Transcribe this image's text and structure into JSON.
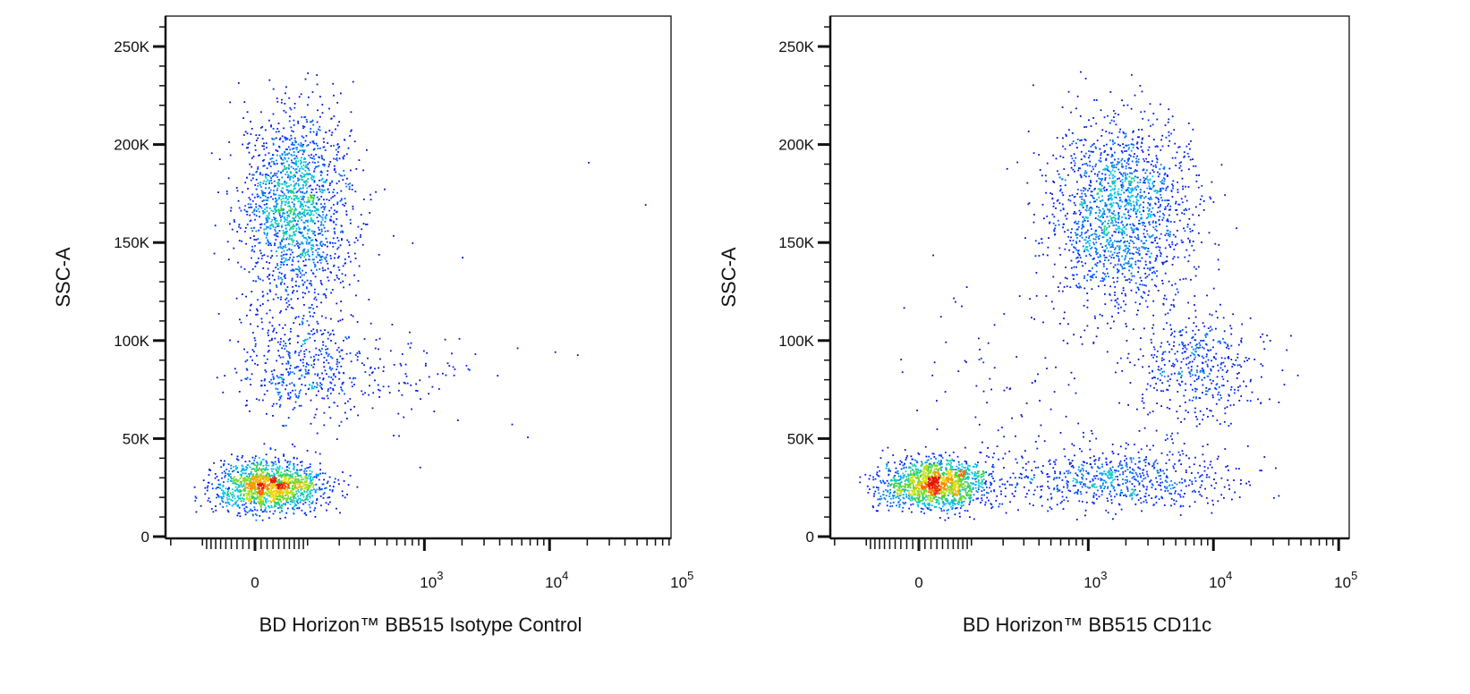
{
  "chart_data": [
    {
      "type": "scatter",
      "subtype": "flow-cytometry density dot plot",
      "xlabel": "BD Horizon™ BB515  Isotype Control",
      "ylabel": "SSC-A",
      "x_scale": "biexponential",
      "x_ticks": [
        {
          "value": 0,
          "label": "0"
        },
        {
          "value": 1000,
          "base": "10",
          "exp": "3"
        },
        {
          "value": 10000,
          "base": "10",
          "exp": "4"
        },
        {
          "value": 100000,
          "base": "10",
          "exp": "5"
        }
      ],
      "y_ticks": [
        {
          "value": 0,
          "label": "0"
        },
        {
          "value": 50000,
          "label": "50K"
        },
        {
          "value": 100000,
          "label": "100K"
        },
        {
          "value": 150000,
          "label": "150K"
        },
        {
          "value": 200000,
          "label": "200K"
        },
        {
          "value": 250000,
          "label": "250K"
        }
      ],
      "ylim": [
        0,
        262144
      ],
      "color_scale": "density (blue-cyan-green-yellow-red)",
      "populations": [
        {
          "x_center": 22,
          "x_sd_decades": 0.22,
          "y_center": 26000,
          "y_sd": 6500,
          "n": 1500
        },
        {
          "x_center": 72,
          "x_sd_decades": 0.22,
          "y_center": 168000,
          "y_sd": 24000,
          "n": 1700
        },
        {
          "x_center": 80,
          "x_sd_decades": 0.25,
          "y_center": 86000,
          "y_sd": 14000,
          "n": 450
        },
        {
          "x_center": 600,
          "x_sd_decades": 0.3,
          "y_center": 85000,
          "y_sd": 12000,
          "n": 90
        },
        {
          "x_center": 3000,
          "x_sd_decades": 1.0,
          "y_center": 80000,
          "y_sd": 70000,
          "n": 25
        }
      ]
    },
    {
      "type": "scatter",
      "subtype": "flow-cytometry density dot plot",
      "xlabel": "BD Horizon™ BB515  CD11c",
      "ylabel": "SSC-A",
      "x_scale": "biexponential",
      "x_ticks": [
        {
          "value": 0,
          "label": "0"
        },
        {
          "value": 1000,
          "base": "10",
          "exp": "3"
        },
        {
          "value": 10000,
          "base": "10",
          "exp": "4"
        },
        {
          "value": 100000,
          "base": "10",
          "exp": "5"
        }
      ],
      "y_ticks": [
        {
          "value": 0,
          "label": "0"
        },
        {
          "value": 50000,
          "label": "50K"
        },
        {
          "value": 100000,
          "label": "100K"
        },
        {
          "value": 150000,
          "label": "150K"
        },
        {
          "value": 200000,
          "label": "200K"
        },
        {
          "value": 250000,
          "label": "250K"
        }
      ],
      "ylim": [
        0,
        262144
      ],
      "color_scale": "density (blue-cyan-green-yellow-red)",
      "populations": [
        {
          "x_center": 25,
          "x_sd_decades": 0.22,
          "y_center": 27000,
          "y_sd": 6500,
          "n": 1500
        },
        {
          "x_center": 1800,
          "x_sd_decades": 0.45,
          "y_center": 30000,
          "y_sd": 8000,
          "n": 700
        },
        {
          "x_center": 1800,
          "x_sd_decades": 0.28,
          "y_center": 166000,
          "y_sd": 24000,
          "n": 1700
        },
        {
          "x_center": 7000,
          "x_sd_decades": 0.25,
          "y_center": 88000,
          "y_sd": 14000,
          "n": 450
        },
        {
          "x_center": 300,
          "x_sd_decades": 0.5,
          "y_center": 70000,
          "y_sd": 30000,
          "n": 120
        }
      ]
    }
  ]
}
